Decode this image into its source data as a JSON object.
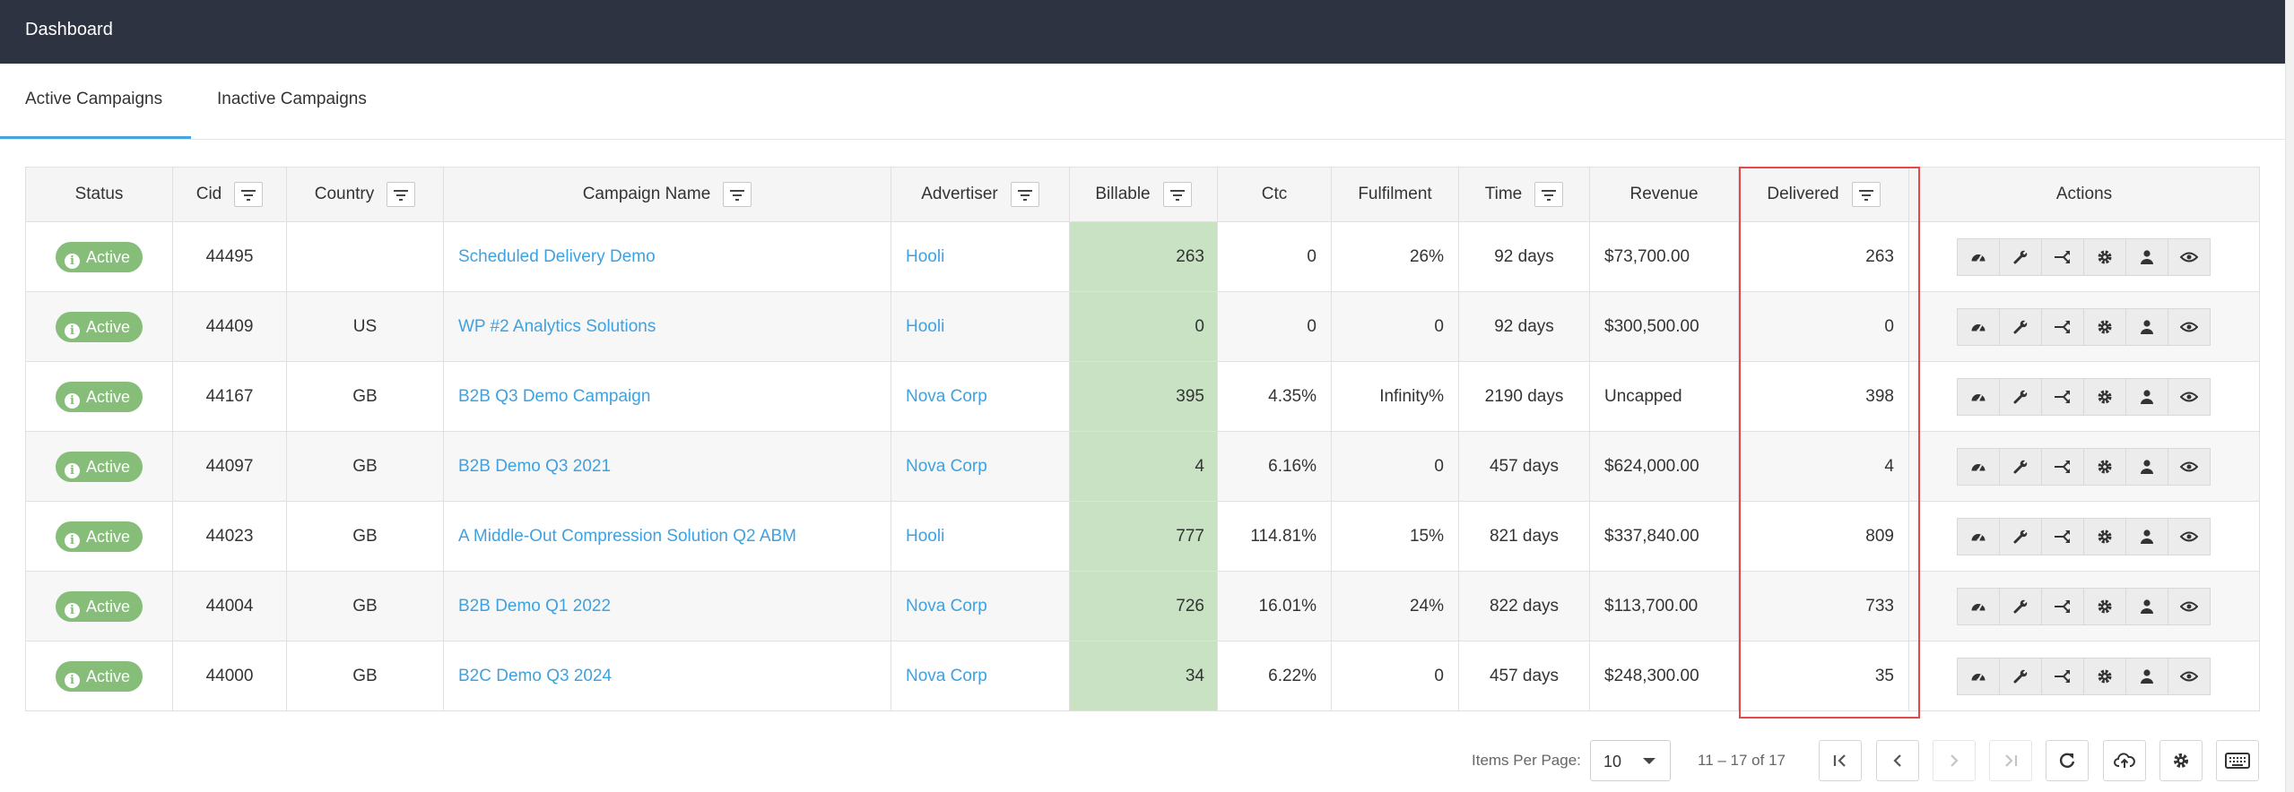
{
  "topbar": {
    "title": "Dashboard"
  },
  "tabs": [
    {
      "label": "Active Campaigns",
      "active": true
    },
    {
      "label": "Inactive Campaigns",
      "active": false
    }
  ],
  "table": {
    "columns": {
      "status": "Status",
      "cid": "Cid",
      "country": "Country",
      "campaign_name": "Campaign Name",
      "advertiser": "Advertiser",
      "billable": "Billable",
      "ctc": "Ctc",
      "fulfilment": "Fulfilment",
      "time": "Time",
      "revenue": "Revenue",
      "delivered": "Delivered",
      "actions": "Actions"
    },
    "rows": [
      {
        "status": "Active",
        "cid": "44495",
        "country": "",
        "campaign_name": "Scheduled Delivery Demo",
        "advertiser": "Hooli",
        "billable": "263",
        "ctc": "0",
        "fulfilment": "26%",
        "time": "92 days",
        "revenue": "$73,700.00",
        "delivered": "263"
      },
      {
        "status": "Active",
        "cid": "44409",
        "country": "US",
        "campaign_name": "WP #2 Analytics Solutions",
        "advertiser": "Hooli",
        "billable": "0",
        "ctc": "0",
        "fulfilment": "0",
        "time": "92 days",
        "revenue": "$300,500.00",
        "delivered": "0"
      },
      {
        "status": "Active",
        "cid": "44167",
        "country": "GB",
        "campaign_name": "B2B Q3 Demo Campaign",
        "advertiser": "Nova Corp",
        "billable": "395",
        "ctc": "4.35%",
        "fulfilment": "Infinity%",
        "time": "2190 days",
        "revenue": "Uncapped",
        "delivered": "398"
      },
      {
        "status": "Active",
        "cid": "44097",
        "country": "GB",
        "campaign_name": "B2B Demo Q3 2021",
        "advertiser": "Nova Corp",
        "billable": "4",
        "ctc": "6.16%",
        "fulfilment": "0",
        "time": "457 days",
        "revenue": "$624,000.00",
        "delivered": "4"
      },
      {
        "status": "Active",
        "cid": "44023",
        "country": "GB",
        "campaign_name": "A Middle-Out Compression Solution Q2 ABM",
        "advertiser": "Hooli",
        "billable": "777",
        "ctc": "114.81%",
        "fulfilment": "15%",
        "time": "821 days",
        "revenue": "$337,840.00",
        "delivered": "809"
      },
      {
        "status": "Active",
        "cid": "44004",
        "country": "GB",
        "campaign_name": "B2B Demo Q1 2022",
        "advertiser": "Nova Corp",
        "billable": "726",
        "ctc": "16.01%",
        "fulfilment": "24%",
        "time": "822 days",
        "revenue": "$113,700.00",
        "delivered": "733"
      },
      {
        "status": "Active",
        "cid": "44000",
        "country": "GB",
        "campaign_name": "B2C Demo Q3 2024",
        "advertiser": "Nova Corp",
        "billable": "34",
        "ctc": "6.22%",
        "fulfilment": "0",
        "time": "457 days",
        "revenue": "$248,300.00",
        "delivered": "35"
      }
    ],
    "row_action_icons": [
      "dashboard-icon",
      "wrench-icon",
      "split-arrows-icon",
      "gear-icon",
      "person-icon",
      "eye-icon"
    ]
  },
  "pagination": {
    "items_per_page_label": "Items Per Page:",
    "items_per_page": "10",
    "range": "11 – 17 of 17",
    "icons": [
      "first-page-icon",
      "previous-page-icon",
      "next-page-icon",
      "last-page-icon",
      "refresh-icon",
      "cloud-upload-icon",
      "gear-icon",
      "keyboard-icon"
    ]
  },
  "colors": {
    "topbar": "#2d3340",
    "accent": "#4aa3df",
    "link": "#3ea1e0",
    "active_badge": "#85bd79",
    "billable_cell": "#c8e2c3",
    "highlight_box": "#e24a4a"
  }
}
